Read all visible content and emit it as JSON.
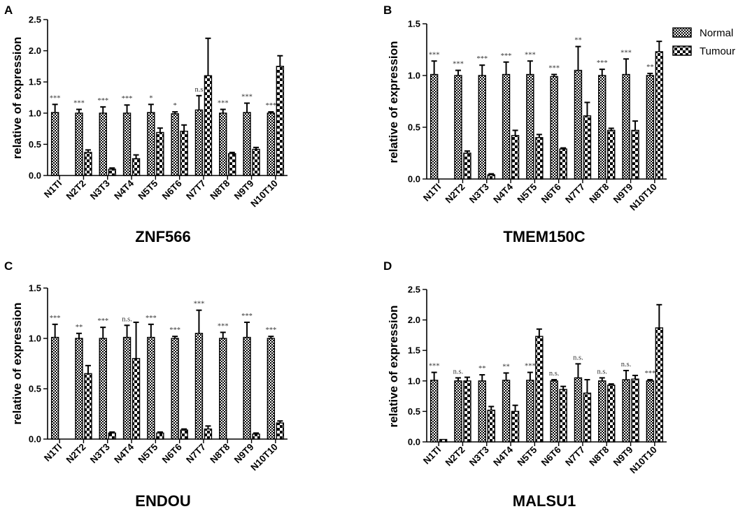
{
  "legend": {
    "items": [
      {
        "label": "Normal",
        "pattern": "fine"
      },
      {
        "label": "Tumour",
        "pattern": "coarse"
      }
    ]
  },
  "colors": {
    "ink": "#000000",
    "background": "#ffffff"
  },
  "chart_data": [
    {
      "panel": "A",
      "type": "bar",
      "title": "ZNF566",
      "ylabel": "relative of expression",
      "xlabel": "",
      "ylim": [
        0,
        2.5
      ],
      "yticks": [
        "0.0",
        "0.5",
        "1.0",
        "1.5",
        "2.0",
        "2.5"
      ],
      "categories": [
        "N1TI",
        "N2T2",
        "N3T3",
        "N4T4",
        "N5T5",
        "N6T6",
        "N7T7",
        "N8T8",
        "N9T9",
        "N10T10"
      ],
      "series": [
        {
          "name": "Normal",
          "values": [
            1.01,
            1.0,
            1.0,
            1.0,
            1.01,
            0.99,
            1.05,
            1.0,
            1.01,
            1.0
          ],
          "errors": [
            0.13,
            0.06,
            0.1,
            0.13,
            0.13,
            0.03,
            0.23,
            0.06,
            0.15,
            0.02
          ]
        },
        {
          "name": "Tumour",
          "values": [
            0.0,
            0.37,
            0.1,
            0.27,
            0.69,
            0.71,
            1.6,
            0.35,
            0.42,
            1.75
          ],
          "errors": [
            0.0,
            0.04,
            0.02,
            0.06,
            0.07,
            0.1,
            0.6,
            0.02,
            0.03,
            0.17
          ]
        }
      ],
      "significance": [
        "***",
        "***",
        "***",
        "***",
        "*",
        "*",
        "n.s",
        "***",
        "***",
        "***"
      ]
    },
    {
      "panel": "B",
      "type": "bar",
      "title": "TMEM150C",
      "ylabel": "relative of expression",
      "xlabel": "",
      "ylim": [
        0,
        1.5
      ],
      "yticks": [
        "0.0",
        "0.5",
        "1.0",
        "1.5"
      ],
      "categories": [
        "N1TI",
        "N2T2",
        "N3T3",
        "N4T4",
        "N5T5",
        "N6T6",
        "N7T7",
        "N8T8",
        "N9T9",
        "N10T10"
      ],
      "series": [
        {
          "name": "Normal",
          "values": [
            1.01,
            1.0,
            1.0,
            1.01,
            1.01,
            0.99,
            1.05,
            1.0,
            1.01,
            1.0
          ],
          "errors": [
            0.13,
            0.05,
            0.1,
            0.12,
            0.13,
            0.02,
            0.23,
            0.06,
            0.15,
            0.02
          ]
        },
        {
          "name": "Tumour",
          "values": [
            0.0,
            0.25,
            0.04,
            0.42,
            0.4,
            0.29,
            0.61,
            0.47,
            0.47,
            1.23
          ],
          "errors": [
            0.0,
            0.02,
            0.01,
            0.05,
            0.03,
            0.01,
            0.13,
            0.02,
            0.09,
            0.1
          ]
        }
      ],
      "significance": [
        "***",
        "***",
        "***",
        "***",
        "***",
        "***",
        "**",
        "***",
        "***",
        "**"
      ]
    },
    {
      "panel": "C",
      "type": "bar",
      "title": "ENDOU",
      "ylabel": "relative of expression",
      "xlabel": "",
      "ylim": [
        0,
        1.5
      ],
      "yticks": [
        "0.0",
        "0.5",
        "1.0",
        "1.5"
      ],
      "categories": [
        "N1TI",
        "N2T2",
        "N3T3",
        "N4T4",
        "N5T5",
        "N6T6",
        "N7T7",
        "N8T8",
        "N9T9",
        "N10T10"
      ],
      "series": [
        {
          "name": "Normal",
          "values": [
            1.01,
            1.0,
            1.0,
            1.01,
            1.01,
            1.0,
            1.05,
            1.0,
            1.01,
            1.0
          ],
          "errors": [
            0.13,
            0.05,
            0.11,
            0.12,
            0.13,
            0.02,
            0.23,
            0.06,
            0.15,
            0.02
          ]
        },
        {
          "name": "Tumour",
          "values": [
            0.0,
            0.65,
            0.06,
            0.8,
            0.06,
            0.09,
            0.1,
            0.0,
            0.05,
            0.16
          ],
          "errors": [
            0.0,
            0.08,
            0.01,
            0.36,
            0.01,
            0.01,
            0.03,
            0.0,
            0.01,
            0.02
          ]
        }
      ],
      "significance": [
        "***",
        "**",
        "***",
        "n.s.",
        "***",
        "***",
        "***",
        "***",
        "***",
        "***"
      ]
    },
    {
      "panel": "D",
      "type": "bar",
      "title": "MALSU1",
      "ylabel": "relative of expression",
      "xlabel": "",
      "ylim": [
        0,
        2.5
      ],
      "yticks": [
        "0.0",
        "0.5",
        "1.0",
        "1.5",
        "2.0",
        "2.5"
      ],
      "categories": [
        "N1TI",
        "N2T2",
        "N3T3",
        "N4T4",
        "N5T5",
        "N6T6",
        "N7T7",
        "N8T8",
        "N9T9",
        "N10T10"
      ],
      "series": [
        {
          "name": "Normal",
          "values": [
            1.01,
            1.0,
            1.0,
            1.01,
            1.01,
            1.0,
            1.05,
            1.0,
            1.02,
            1.0
          ],
          "errors": [
            0.13,
            0.05,
            0.1,
            0.12,
            0.13,
            0.02,
            0.23,
            0.05,
            0.15,
            0.02
          ]
        },
        {
          "name": "Tumour",
          "values": [
            0.04,
            1.0,
            0.52,
            0.5,
            1.73,
            0.86,
            0.8,
            0.93,
            1.03,
            1.87
          ],
          "errors": [
            0.0,
            0.06,
            0.06,
            0.1,
            0.12,
            0.05,
            0.22,
            0.02,
            0.06,
            0.38
          ]
        }
      ],
      "significance": [
        "***",
        "n.s.",
        "**",
        "**",
        "***",
        "n.s.",
        "n.s.",
        "n.s.",
        "n.s.",
        "***"
      ]
    }
  ]
}
